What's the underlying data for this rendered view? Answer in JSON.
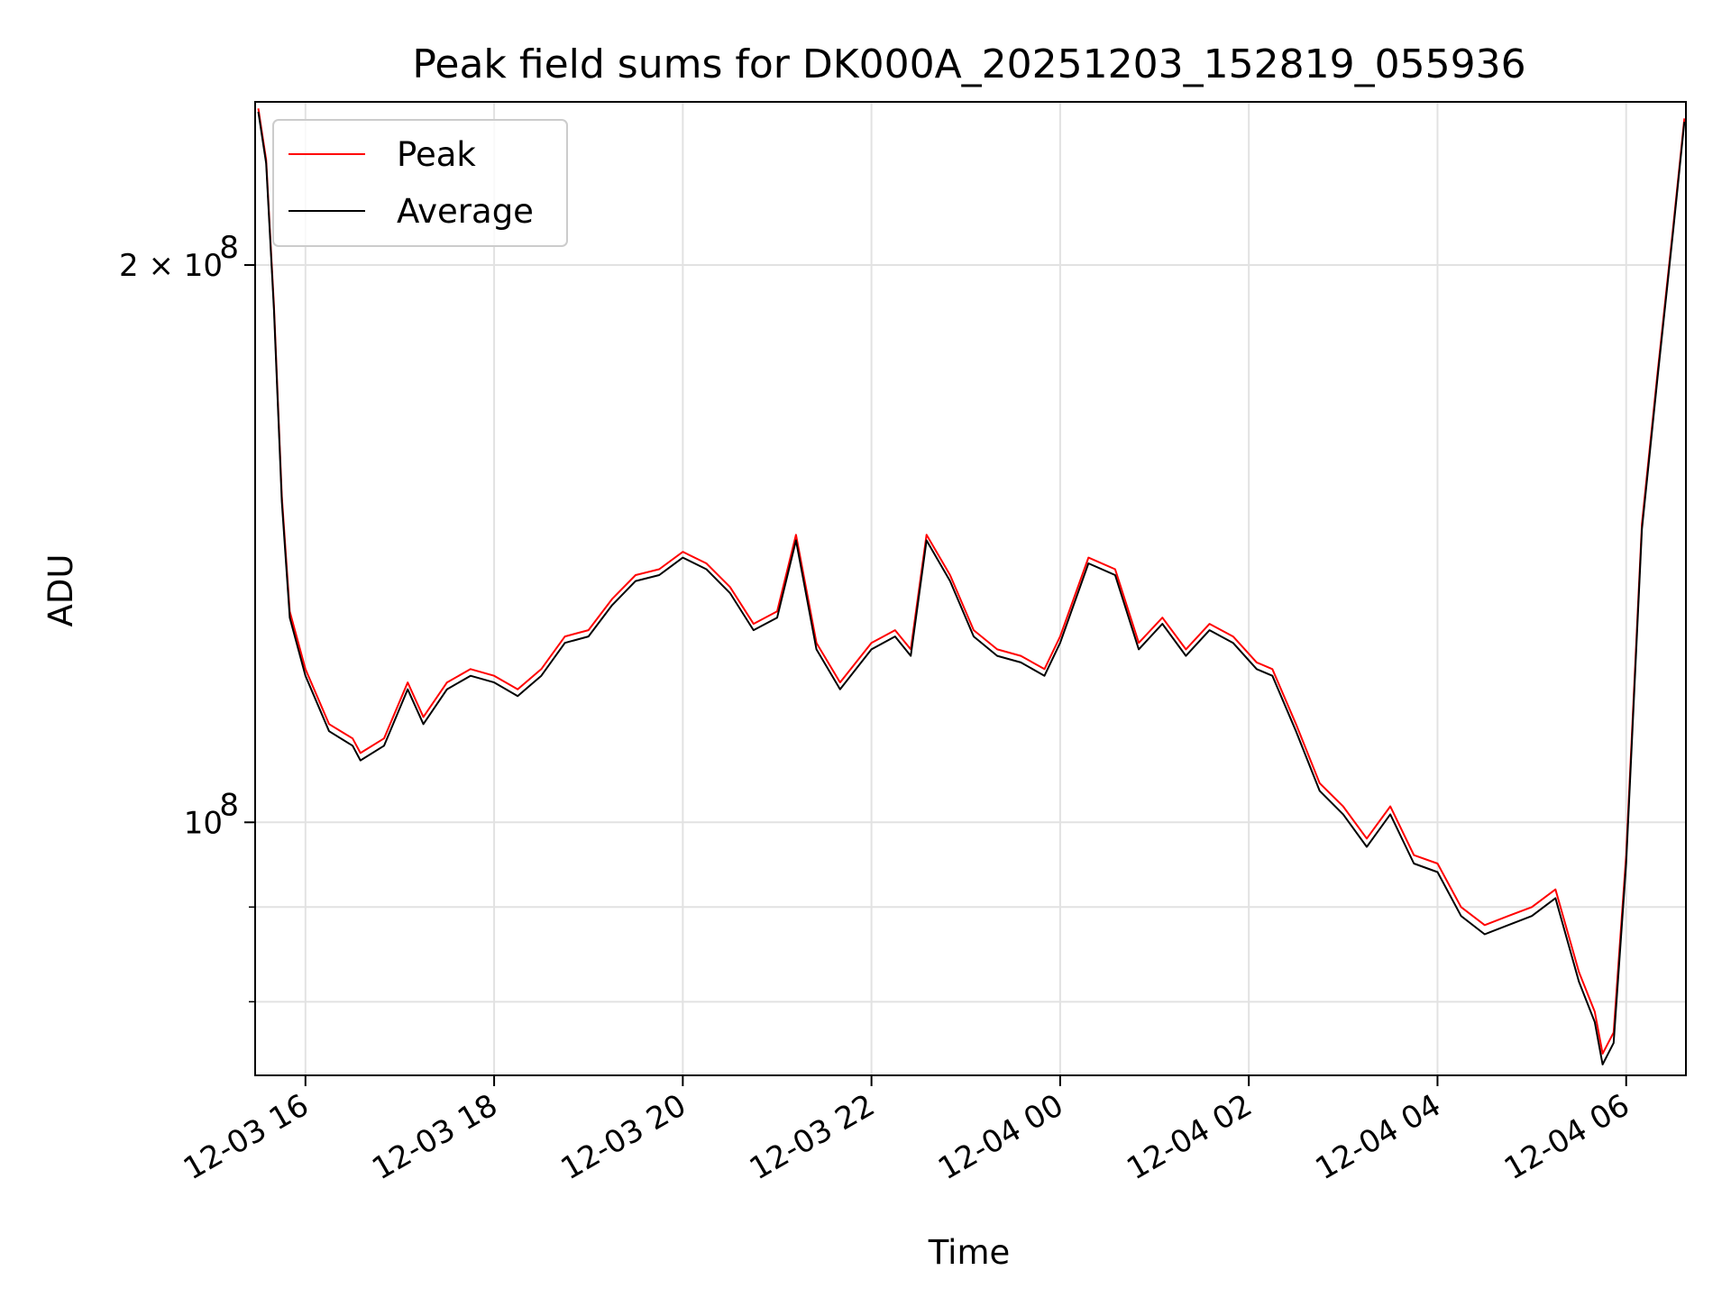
{
  "chart_data": {
    "type": "line",
    "title": "Peak field sums for DK000A_20251203_152819_055936",
    "xlabel": "Time",
    "ylabel": "ADU",
    "yscale": "log",
    "ylim": [
      73000000,
      245000000
    ],
    "xlim": [
      "2025-12-03 15:28",
      "2025-12-04 06:38"
    ],
    "grid": true,
    "legend": "top-left",
    "x_ticks": [
      "12-03 16",
      "12-03 18",
      "12-03 20",
      "12-03 22",
      "12-04 00",
      "12-04 02",
      "12-04 04",
      "12-04 06"
    ],
    "y_ticks": [
      {
        "value": 100000000,
        "label": "10",
        "exp": "8"
      },
      {
        "value": 200000000,
        "label": "2 × 10",
        "exp": "8"
      }
    ],
    "x": [
      "2025-12-03 15:30",
      "2025-12-03 15:35",
      "2025-12-03 15:40",
      "2025-12-03 15:45",
      "2025-12-03 15:50",
      "2025-12-03 16:00",
      "2025-12-03 16:15",
      "2025-12-03 16:30",
      "2025-12-03 16:35",
      "2025-12-03 16:50",
      "2025-12-03 17:05",
      "2025-12-03 17:15",
      "2025-12-03 17:30",
      "2025-12-03 17:45",
      "2025-12-03 18:00",
      "2025-12-03 18:15",
      "2025-12-03 18:30",
      "2025-12-03 18:45",
      "2025-12-03 19:00",
      "2025-12-03 19:15",
      "2025-12-03 19:30",
      "2025-12-03 19:45",
      "2025-12-03 20:00",
      "2025-12-03 20:15",
      "2025-12-03 20:30",
      "2025-12-03 20:45",
      "2025-12-03 21:00",
      "2025-12-03 21:12",
      "2025-12-03 21:25",
      "2025-12-03 21:40",
      "2025-12-03 22:00",
      "2025-12-03 22:15",
      "2025-12-03 22:25",
      "2025-12-03 22:35",
      "2025-12-03 22:50",
      "2025-12-03 23:05",
      "2025-12-03 23:20",
      "2025-12-03 23:35",
      "2025-12-03 23:50",
      "2025-12-04 00:00",
      "2025-12-04 00:18",
      "2025-12-04 00:35",
      "2025-12-04 00:50",
      "2025-12-04 01:05",
      "2025-12-04 01:20",
      "2025-12-04 01:35",
      "2025-12-04 01:50",
      "2025-12-04 02:05",
      "2025-12-04 02:15",
      "2025-12-04 02:30",
      "2025-12-04 02:45",
      "2025-12-04 03:00",
      "2025-12-04 03:15",
      "2025-12-04 03:30",
      "2025-12-04 03:45",
      "2025-12-04 04:00",
      "2025-12-04 04:15",
      "2025-12-04 04:30",
      "2025-12-04 04:45",
      "2025-12-04 05:00",
      "2025-12-04 05:15",
      "2025-12-04 05:30",
      "2025-12-04 05:40",
      "2025-12-04 05:45",
      "2025-12-04 05:52",
      "2025-12-04 06:00",
      "2025-12-04 06:10",
      "2025-12-04 06:20",
      "2025-12-04 06:30",
      "2025-12-04 06:37"
    ],
    "series": [
      {
        "name": "Peak",
        "color": "#ff0000",
        "values": [
          243000000,
          228000000,
          190000000,
          150000000,
          130000000,
          121000000,
          113000000,
          111000000,
          109000000,
          111000000,
          119000000,
          114000000,
          119000000,
          121000000,
          120000000,
          118000000,
          121000000,
          126000000,
          127000000,
          132000000,
          136000000,
          137000000,
          140000000,
          138000000,
          134000000,
          128000000,
          130000000,
          143000000,
          125000000,
          119000000,
          125000000,
          127000000,
          124000000,
          143000000,
          136000000,
          127000000,
          124000000,
          123000000,
          121000000,
          126000000,
          139000000,
          137000000,
          125000000,
          129000000,
          124000000,
          128000000,
          126000000,
          122000000,
          121000000,
          113000000,
          105000000,
          102000000,
          98000000,
          102000000,
          96000000,
          95000000,
          90000000,
          88000000,
          89000000,
          90000000,
          92000000,
          83000000,
          79000000,
          75000000,
          77000000,
          96000000,
          145000000,
          175000000,
          210000000,
          240000000
        ]
      },
      {
        "name": "Average",
        "color": "#000000",
        "values": [
          242000000,
          227000000,
          189000000,
          149000000,
          129000000,
          120000000,
          112000000,
          110000000,
          108000000,
          110000000,
          118000000,
          113000000,
          118000000,
          120000000,
          119000000,
          117000000,
          120000000,
          125000000,
          126000000,
          131000000,
          135000000,
          136000000,
          139000000,
          137000000,
          133000000,
          127000000,
          129000000,
          142000000,
          124000000,
          118000000,
          124000000,
          126000000,
          123000000,
          142000000,
          135000000,
          126000000,
          123000000,
          122000000,
          120000000,
          125000000,
          138000000,
          136000000,
          124000000,
          128000000,
          123000000,
          127000000,
          125000000,
          121000000,
          120000000,
          112000000,
          104000000,
          101000000,
          97000000,
          101000000,
          95000000,
          94000000,
          89000000,
          87000000,
          88000000,
          89000000,
          91000000,
          82000000,
          78000000,
          74000000,
          76000000,
          95000000,
          144000000,
          174000000,
          209000000,
          239000000
        ]
      }
    ]
  }
}
